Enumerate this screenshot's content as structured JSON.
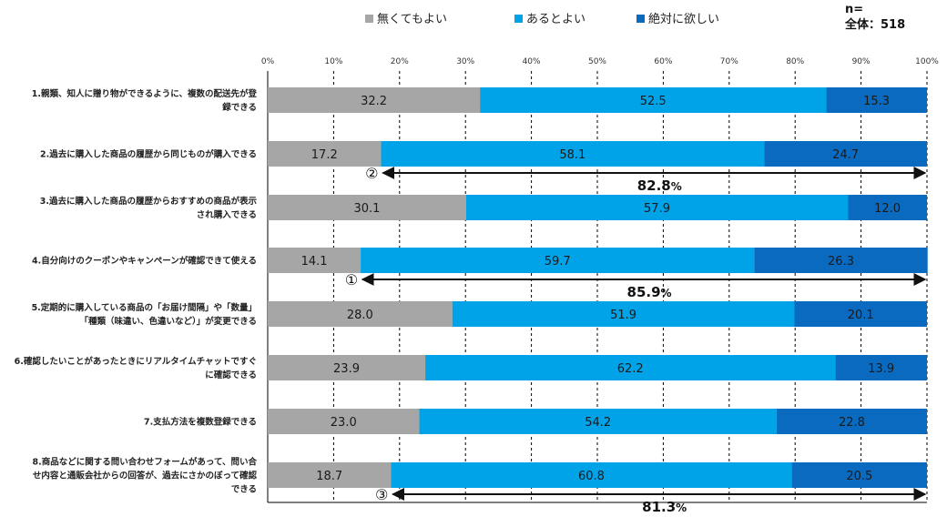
{
  "chart_data": {
    "type": "bar",
    "orientation": "horizontal-stacked-100",
    "n_label": "n=",
    "n_total": "全体：518",
    "xlim": [
      0,
      100
    ],
    "ticks": [
      "0%",
      "10%",
      "20%",
      "30%",
      "40%",
      "50%",
      "60%",
      "70%",
      "80%",
      "90%",
      "100%"
    ],
    "legend_position": "top",
    "categories": [
      [
        "1.親類、知人に贈り物ができるように、複数の配送先が登",
        "録できる"
      ],
      [
        "2.過去に購入した商品の履歴から同じものが購入できる"
      ],
      [
        "3.過去に購入した商品の履歴からおすすめの商品が表示",
        "され購入できる"
      ],
      [
        "4.自分向けのクーポンやキャンペーンが確認できて使える"
      ],
      [
        "5.定期的に購入している商品の「お届け間隔」や「数量」",
        "「種類（味違い、色違いなど）」が変更できる"
      ],
      [
        "6.確認したいことがあったときにリアルタイムチャットですぐ",
        "に確認できる"
      ],
      [
        "7.支払方法を複数登録できる"
      ],
      [
        "8.商品などに関する問い合わせフォームがあって、問い合",
        "せ内容と通販会社からの回答が、過去にさかのぼって確認",
        "できる"
      ]
    ],
    "series": [
      {
        "name": "無くてもよい",
        "color": "#a6a6a6",
        "values": [
          32.2,
          17.2,
          30.1,
          14.1,
          28.0,
          23.9,
          23.0,
          18.7
        ]
      },
      {
        "name": "あるとよい",
        "color": "#00a3e8",
        "values": [
          52.5,
          58.1,
          57.9,
          59.7,
          51.9,
          62.2,
          54.2,
          60.8
        ]
      },
      {
        "name": "絶対に欲しい",
        "color": "#0a6ac0",
        "values": [
          15.3,
          24.7,
          12.0,
          26.3,
          20.1,
          13.9,
          22.8,
          20.5
        ]
      }
    ],
    "annotations": [
      {
        "category_index": 1,
        "from": 17.2,
        "to": 100,
        "marker": "②",
        "total": "82.8",
        "unit": "%"
      },
      {
        "category_index": 3,
        "from": 14.1,
        "to": 100,
        "marker": "①",
        "total": "85.9",
        "unit": "%"
      },
      {
        "category_index": 7,
        "from": 18.7,
        "to": 100,
        "marker": "③",
        "total": "81.3",
        "unit": "%"
      }
    ]
  }
}
